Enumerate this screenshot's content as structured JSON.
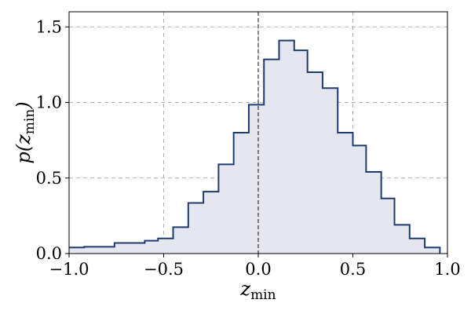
{
  "chart_data": {
    "type": "histogram",
    "step": true,
    "xlabel": {
      "main": "z",
      "sub": "min"
    },
    "ylabel": {
      "main": "p(z",
      "sub": "min",
      "suffix": ")"
    },
    "xlim": [
      -1.0,
      1.0
    ],
    "ylim": [
      0.0,
      1.6
    ],
    "grid": true,
    "reference_line_x": 0.0,
    "colors": {
      "line": "#1f3b6e",
      "fill": "#e4e7f0",
      "grid": "#b0b0b0",
      "reference_line": "#333333"
    },
    "xticks": [
      {
        "value": -1.0,
        "label": "−1.0"
      },
      {
        "value": -0.5,
        "label": "−0.5"
      },
      {
        "value": 0.0,
        "label": "0.0"
      },
      {
        "value": 0.5,
        "label": "0.5"
      },
      {
        "value": 1.0,
        "label": "1.0"
      }
    ],
    "yticks": [
      {
        "value": 0.0,
        "label": "0.0"
      },
      {
        "value": 0.5,
        "label": "0.5"
      },
      {
        "value": 1.0,
        "label": "1.0"
      },
      {
        "value": 1.5,
        "label": "1.5"
      }
    ],
    "bins": [
      {
        "x0": -1.0,
        "x1": -0.92,
        "y": 0.04
      },
      {
        "x0": -0.92,
        "x1": -0.76,
        "y": 0.045
      },
      {
        "x0": -0.76,
        "x1": -0.6,
        "y": 0.07
      },
      {
        "x0": -0.6,
        "x1": -0.53,
        "y": 0.085
      },
      {
        "x0": -0.53,
        "x1": -0.45,
        "y": 0.1
      },
      {
        "x0": -0.45,
        "x1": -0.37,
        "y": 0.175
      },
      {
        "x0": -0.37,
        "x1": -0.29,
        "y": 0.335
      },
      {
        "x0": -0.29,
        "x1": -0.21,
        "y": 0.41
      },
      {
        "x0": -0.21,
        "x1": -0.13,
        "y": 0.59
      },
      {
        "x0": -0.13,
        "x1": -0.05,
        "y": 0.8
      },
      {
        "x0": -0.05,
        "x1": 0.03,
        "y": 0.985
      },
      {
        "x0": 0.03,
        "x1": 0.11,
        "y": 1.285
      },
      {
        "x0": 0.11,
        "x1": 0.19,
        "y": 1.41
      },
      {
        "x0": 0.19,
        "x1": 0.26,
        "y": 1.345
      },
      {
        "x0": 0.26,
        "x1": 0.34,
        "y": 1.2
      },
      {
        "x0": 0.34,
        "x1": 0.42,
        "y": 1.095
      },
      {
        "x0": 0.42,
        "x1": 0.5,
        "y": 0.8
      },
      {
        "x0": 0.5,
        "x1": 0.57,
        "y": 0.715
      },
      {
        "x0": 0.57,
        "x1": 0.65,
        "y": 0.54
      },
      {
        "x0": 0.65,
        "x1": 0.72,
        "y": 0.365
      },
      {
        "x0": 0.72,
        "x1": 0.8,
        "y": 0.19
      },
      {
        "x0": 0.8,
        "x1": 0.88,
        "y": 0.1
      },
      {
        "x0": 0.88,
        "x1": 0.96,
        "y": 0.04
      }
    ]
  }
}
